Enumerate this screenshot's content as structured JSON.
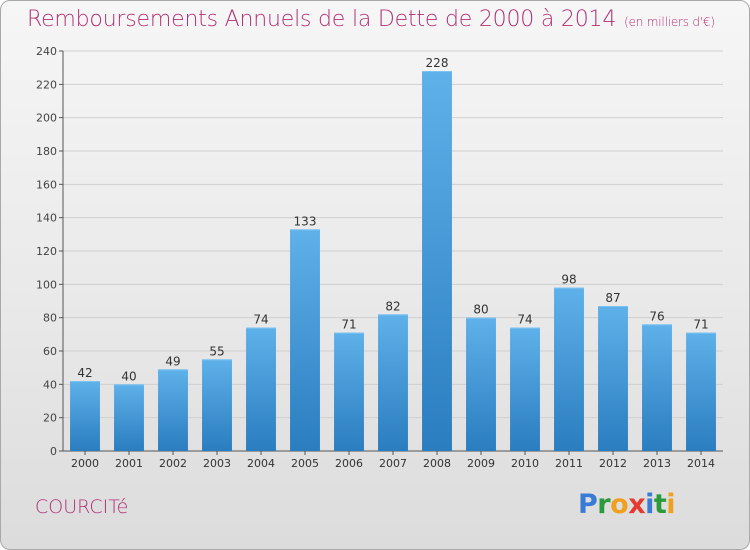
{
  "title": "Remboursements Annuels de la Dette de 2000 à 2014",
  "subtitle": "(en milliers d'€)",
  "town": "COURCITé",
  "logo": {
    "letters": [
      "P",
      "r",
      "o",
      "x",
      "i",
      "t",
      "i"
    ],
    "colors": [
      "#3a7bd5",
      "#2a9a3c",
      "#f0a020",
      "#e43a2f",
      "#3a7bd5",
      "#2a9a3c",
      "#f0a020"
    ]
  },
  "colors": {
    "accent": "#b03075",
    "bar_light": "#5dade8",
    "bar_dark": "#2a7ec0"
  },
  "chart_data": {
    "type": "bar",
    "title": "Remboursements Annuels de la Dette de 2000 à 2014",
    "categories": [
      "2000",
      "2001",
      "2002",
      "2003",
      "2004",
      "2005",
      "2006",
      "2007",
      "2008",
      "2009",
      "2010",
      "2011",
      "2012",
      "2013",
      "2014"
    ],
    "values": [
      42,
      40,
      49,
      55,
      74,
      133,
      71,
      82,
      228,
      80,
      74,
      98,
      87,
      76,
      71
    ],
    "ylim": [
      0,
      240
    ],
    "yticks": [
      0,
      20,
      40,
      60,
      80,
      100,
      120,
      140,
      160,
      180,
      200,
      220,
      240
    ],
    "grid": true,
    "data_labels": true
  }
}
